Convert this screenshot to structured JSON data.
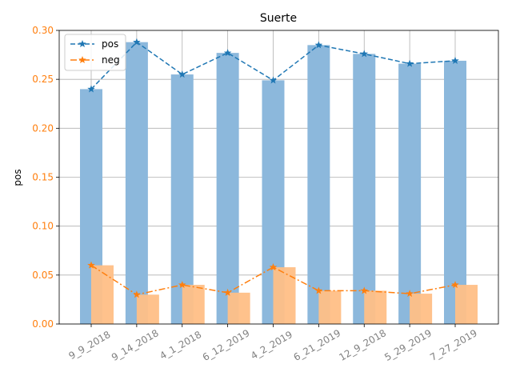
{
  "chart_data": {
    "type": "bar",
    "title": "Suerte",
    "ylabel": "pos",
    "xlabel": "",
    "categories": [
      "9_9_2018",
      "9_14_2018",
      "4_1_2018",
      "6_12_2019",
      "4_2_2019",
      "6_21_2019",
      "12_9_2018",
      "5_29_2019",
      "7_27_2019"
    ],
    "ylim": [
      0,
      0.3
    ],
    "yticks": [
      "0.00",
      "0.05",
      "0.10",
      "0.15",
      "0.20",
      "0.25",
      "0.30"
    ],
    "grid": true,
    "legend_position": "top-left",
    "series": [
      {
        "name": "pos",
        "bar_color": "#8cb8dc",
        "line_color": "#1f77b4",
        "line_style": "dashed",
        "marker": "star",
        "values": [
          0.24,
          0.288,
          0.255,
          0.277,
          0.249,
          0.285,
          0.276,
          0.266,
          0.269
        ]
      },
      {
        "name": "neg",
        "bar_color": "#ffbf86",
        "line_color": "#ff7f0e",
        "line_style": "dash-dot",
        "marker": "star",
        "values": [
          0.06,
          0.03,
          0.04,
          0.032,
          0.058,
          0.034,
          0.034,
          0.031,
          0.04
        ]
      }
    ],
    "axis_color": "#ff7f0e",
    "xtick_color": "#808080"
  }
}
